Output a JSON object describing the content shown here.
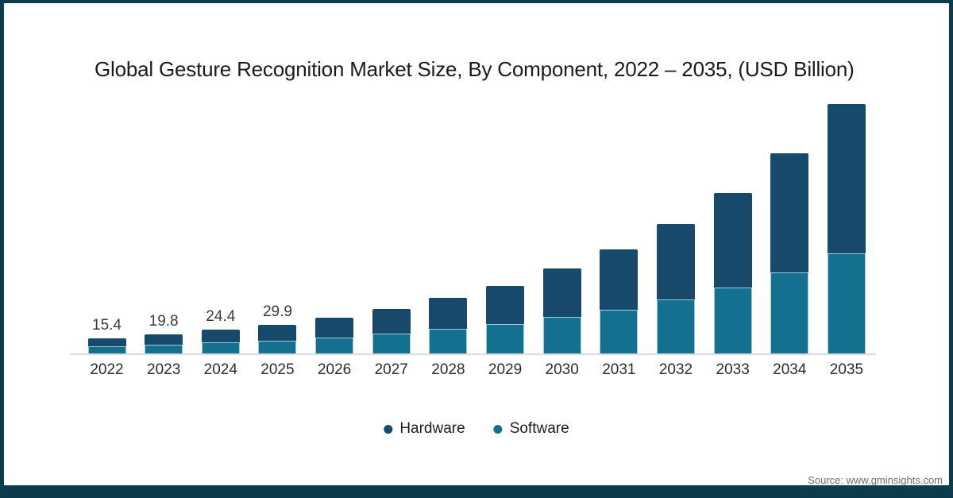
{
  "frame": {
    "border_color": "#0b3c4d",
    "background_color": "#ffffff"
  },
  "title": "Global Gesture Recognition Market Size, By Component, 2022 – 2035, (USD Billion)",
  "legend": [
    {
      "label": "Hardware",
      "color": "#17496a"
    },
    {
      "label": "Software",
      "color": "#13718f"
    }
  ],
  "source": "Source: www.gminsights.com",
  "chart_data": {
    "type": "bar",
    "stacked": true,
    "title": "Global Gesture Recognition Market Size, By Component, 2022 – 2035, (USD Billion)",
    "units": "USD Billion",
    "categories": [
      "2022",
      "2023",
      "2024",
      "2025",
      "2026",
      "2027",
      "2028",
      "2029",
      "2030",
      "2031",
      "2032",
      "2033",
      "2034",
      "2035"
    ],
    "series": [
      {
        "name": "Hardware",
        "color": "#17496a",
        "stack_position": "top",
        "values": [
          8.2,
          10.7,
          13.3,
          16.4,
          20.5,
          25.6,
          32.4,
          39.7,
          50.4,
          62.3,
          78.2,
          97.8,
          122.7,
          154.4
        ]
      },
      {
        "name": "Software",
        "color": "#13718f",
        "stack_position": "bottom",
        "values": [
          7.2,
          9.1,
          11.1,
          13.5,
          16.5,
          20.1,
          25.0,
          30.0,
          37.3,
          45.1,
          55.4,
          68.0,
          83.6,
          103.0
        ]
      }
    ],
    "totals": [
      15.4,
      19.8,
      24.4,
      29.9,
      37.0,
      45.7,
      57.4,
      69.7,
      87.7,
      107.4,
      133.6,
      165.8,
      206.3,
      257.4
    ],
    "data_labels": [
      "15.4",
      "19.8",
      "24.4",
      "29.9",
      "",
      "",
      "",
      "",
      "",
      "",
      "",
      "",
      "",
      ""
    ],
    "xlabel": "",
    "ylabel": "",
    "ylim": [
      0,
      265
    ],
    "grid": false,
    "y_axis_visible": false,
    "legend_position": "bottom",
    "note": "values for 2026-2035 estimated from bar heights; only 2022-2025 carry printed data labels"
  }
}
